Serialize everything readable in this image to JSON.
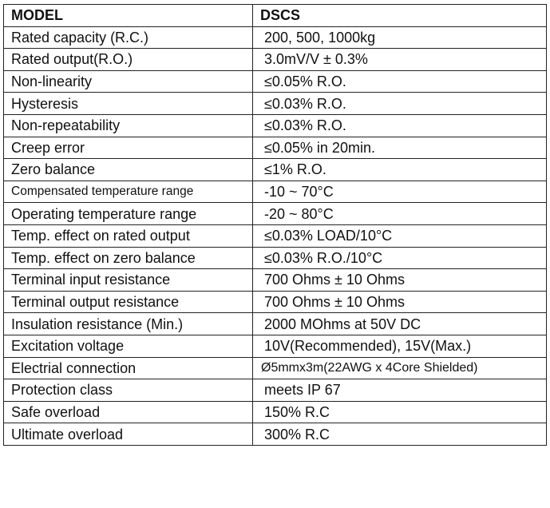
{
  "header": {
    "model_label": "MODEL",
    "model_value": "DSCS"
  },
  "rows": [
    {
      "label": "Rated capacity (R.C.)",
      "value": "200, 500, 1000kg"
    },
    {
      "label": "Rated output(R.O.)",
      "value": "3.0mV/V ± 0.3%"
    },
    {
      "label": "Non-linearity",
      "value": "≤0.05% R.O."
    },
    {
      "label": "Hysteresis",
      "value": "≤0.03% R.O."
    },
    {
      "label": "Non-repeatability",
      "value": "≤0.03% R.O."
    },
    {
      "label": "Creep error",
      "value": "≤0.05% in 20min."
    },
    {
      "label": "Zero balance",
      "value": "≤1% R.O."
    },
    {
      "label": "Compensated temperature range",
      "value": "-10 ~ 70°C"
    },
    {
      "label": "Operating temperature range",
      "value": "-20 ~ 80°C"
    },
    {
      "label": "Temp. effect on rated output",
      "value": "≤0.03% LOAD/10°C"
    },
    {
      "label": "Temp. effect on zero balance",
      "value": "≤0.03% R.O./10°C"
    },
    {
      "label": "Terminal input resistance",
      "value": "700 Ohms ± 10 Ohms"
    },
    {
      "label": "Terminal output resistance",
      "value": "700 Ohms ± 10 Ohms"
    },
    {
      "label": "Insulation resistance (Min.)",
      "value": "2000 MOhms at 50V DC"
    },
    {
      "label": "Excitation voltage",
      "value": "10V(Recommended), 15V(Max.)"
    },
    {
      "label": "Electrial connection",
      "value": "Ø5mmx3m(22AWG x 4Core Shielded)"
    },
    {
      "label": "Protection class",
      "value": "meets IP 67"
    },
    {
      "label": "Safe overload",
      "value": "150% R.C"
    },
    {
      "label": "Ultimate overload",
      "value": "300% R.C"
    }
  ]
}
